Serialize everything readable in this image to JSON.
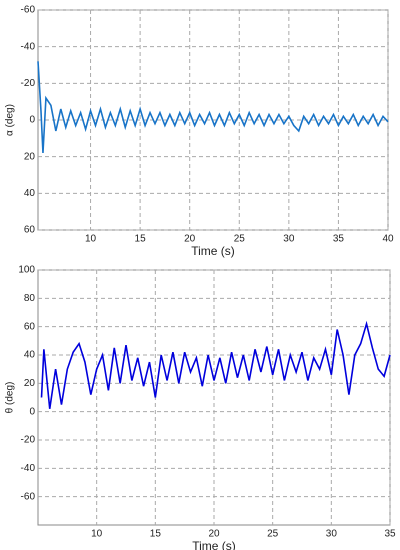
{
  "chart_data": [
    {
      "type": "line",
      "xlabel": "Time (s)",
      "ylabel": "α (deg)",
      "grid": true,
      "xlim": [
        4.7,
        40
      ],
      "ylim": [
        60,
        -60
      ],
      "xticks": [
        10,
        15,
        20,
        25,
        30,
        35,
        40
      ],
      "yticks": [
        -60,
        -40,
        -20,
        0,
        20,
        40,
        60
      ],
      "x": [
        4.7,
        5,
        5.2,
        5.5,
        6,
        6.5,
        7,
        7.5,
        8,
        8.5,
        9,
        9.5,
        10,
        10.5,
        11,
        11.5,
        12,
        12.5,
        13,
        13.5,
        14,
        14.5,
        15,
        15.5,
        16,
        16.5,
        17,
        17.5,
        18,
        18.5,
        19,
        19.5,
        20,
        20.5,
        21,
        21.5,
        22,
        22.5,
        23,
        23.5,
        24,
        24.5,
        25,
        25.5,
        26,
        26.5,
        27,
        27.5,
        28,
        28.5,
        29,
        29.5,
        30,
        30.5,
        31,
        31.5,
        32,
        32.5,
        33,
        33.5,
        34,
        34.5,
        35,
        35.5,
        36,
        36.5,
        37,
        37.5,
        38,
        38.5,
        39,
        39.5,
        40
      ],
      "series": [
        {
          "name": "alpha",
          "color": "#1874c8",
          "values": [
            -32,
            -5,
            18,
            -12,
            -8,
            6,
            -6,
            4,
            -5,
            3,
            -4,
            5,
            -5,
            3,
            -6,
            4,
            -4,
            3,
            -6,
            4,
            -5,
            3,
            -6,
            3,
            -4,
            2,
            -4,
            3,
            -3,
            3,
            -4,
            2,
            -4,
            3,
            -3,
            2,
            -4,
            3,
            -3,
            3,
            -4,
            2,
            -3,
            3,
            -4,
            2,
            -3,
            3,
            -3,
            2,
            -3,
            2,
            -2,
            3,
            6,
            -2,
            2,
            -3,
            3,
            -2,
            2,
            -3,
            3,
            -2,
            2,
            -3,
            3,
            -2,
            2,
            -3,
            3,
            -2,
            1
          ]
        }
      ]
    },
    {
      "type": "line",
      "xlabel": "Time (s)",
      "ylabel": "θ (deg)",
      "grid": true,
      "xlim": [
        5,
        35
      ],
      "ylim": [
        -80,
        100
      ],
      "xticks": [
        10,
        15,
        20,
        25,
        30,
        35
      ],
      "yticks": [
        100,
        80,
        60,
        40,
        20,
        0,
        -20,
        -40,
        -60
      ],
      "x": [
        5.3,
        5.5,
        6,
        6.5,
        7,
        7.5,
        8,
        8.5,
        9,
        9.5,
        10,
        10.5,
        11,
        11.5,
        12,
        12.5,
        13,
        13.5,
        14,
        14.5,
        15,
        15.5,
        16,
        16.5,
        17,
        17.5,
        18,
        18.5,
        19,
        19.5,
        20,
        20.5,
        21,
        21.5,
        22,
        22.5,
        23,
        23.5,
        24,
        24.5,
        25,
        25.5,
        26,
        26.5,
        27,
        27.5,
        28,
        28.5,
        29,
        29.5,
        30,
        30.5,
        31,
        31.5,
        32,
        32.5,
        33,
        33.5,
        34,
        34.5,
        35
      ],
      "series": [
        {
          "name": "theta",
          "color": "#0000dd",
          "values": [
            10,
            44,
            2,
            30,
            5,
            30,
            42,
            48,
            35,
            12,
            30,
            40,
            15,
            45,
            20,
            47,
            22,
            38,
            18,
            35,
            10,
            40,
            22,
            42,
            20,
            42,
            28,
            38,
            18,
            40,
            22,
            38,
            20,
            42,
            24,
            40,
            22,
            44,
            28,
            46,
            26,
            44,
            22,
            40,
            28,
            42,
            22,
            38,
            30,
            44,
            26,
            58,
            40,
            12,
            40,
            48,
            62,
            45,
            30,
            25,
            40
          ]
        }
      ]
    }
  ]
}
